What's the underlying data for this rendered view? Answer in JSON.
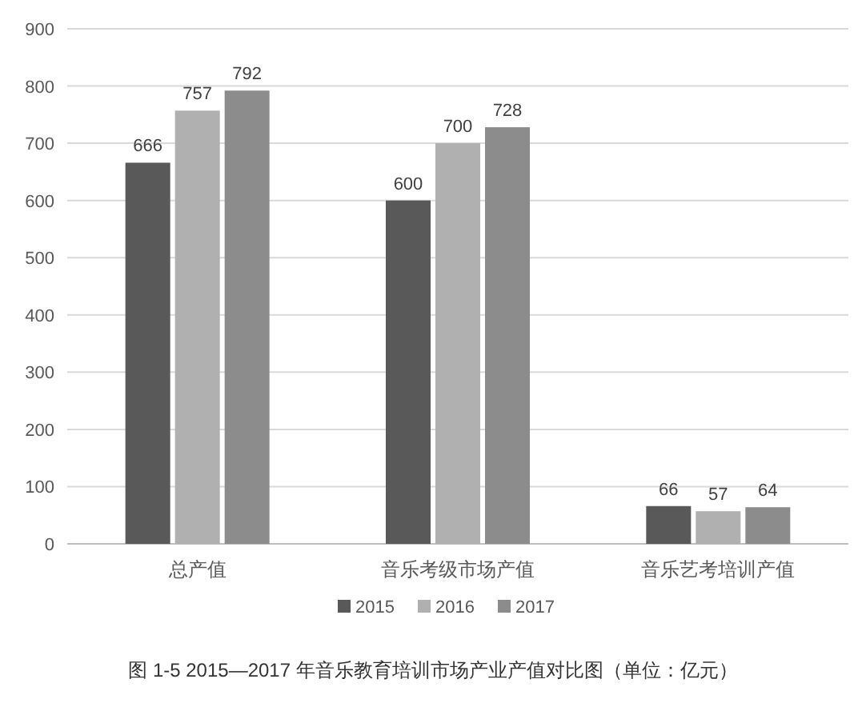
{
  "chart_data": {
    "type": "bar",
    "title": "图 1-5 2015—2017 年音乐教育培训市场产业产值对比图（单位：亿元）",
    "categories": [
      "总产值",
      "音乐考级市场产值",
      "音乐艺考培训产值"
    ],
    "series": [
      {
        "name": "2015",
        "color": "#595959",
        "values": [
          666,
          600,
          66
        ]
      },
      {
        "name": "2016",
        "color": "#b0b0b0",
        "values": [
          757,
          700,
          57
        ]
      },
      {
        "name": "2017",
        "color": "#8c8c8c",
        "values": [
          792,
          728,
          64
        ]
      }
    ],
    "ylim": [
      0,
      900
    ],
    "yticks": [
      0,
      100,
      200,
      300,
      400,
      500,
      600,
      700,
      800,
      900
    ],
    "grid": "y",
    "legend": "bottom",
    "data_labels": true
  }
}
